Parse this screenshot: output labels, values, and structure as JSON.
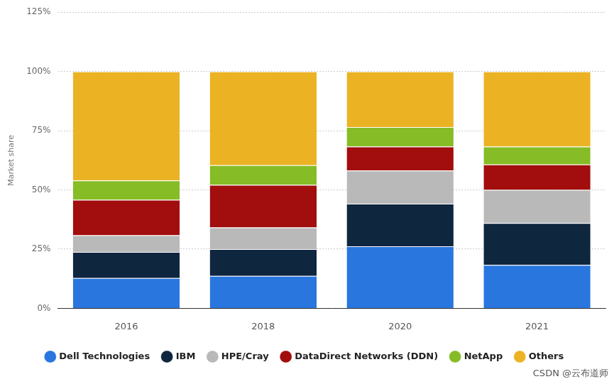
{
  "chart_data": {
    "type": "bar",
    "stacked": true,
    "y_label": "Market share",
    "categories": [
      "2016",
      "2018",
      "2020",
      "2021"
    ],
    "series": [
      {
        "name": "Dell Technologies",
        "color": "#2976de",
        "values": [
          12.8,
          13.7,
          26.2,
          18.3
        ]
      },
      {
        "name": "IBM",
        "color": "#0f263f",
        "values": [
          11,
          11.3,
          18,
          17.7
        ]
      },
      {
        "name": "HPE/Cray",
        "color": "#b9b9b9",
        "values": [
          7,
          9.1,
          14,
          14
        ]
      },
      {
        "name": "DataDirect Networks (DDN)",
        "color": "#a20d0e",
        "values": [
          15,
          18,
          10.1,
          10.7
        ]
      },
      {
        "name": "NetApp",
        "color": "#86bc26",
        "values": [
          8.2,
          8.3,
          8.2,
          7.6
        ]
      },
      {
        "name": "Others",
        "color": "#ebb324",
        "values": [
          46,
          39.6,
          23.5,
          31.7
        ]
      }
    ],
    "ylim": [
      0,
      125
    ],
    "yticks": [
      {
        "value": 0,
        "label": "0%"
      },
      {
        "value": 25,
        "label": "25%"
      },
      {
        "value": 50,
        "label": "50%"
      },
      {
        "value": 75,
        "label": "75%"
      },
      {
        "value": 100,
        "label": "100%"
      },
      {
        "value": 125,
        "label": "125%"
      }
    ],
    "grid": true,
    "legend": "bottom",
    "annotations": [
      "CSDN @云布道师"
    ]
  }
}
